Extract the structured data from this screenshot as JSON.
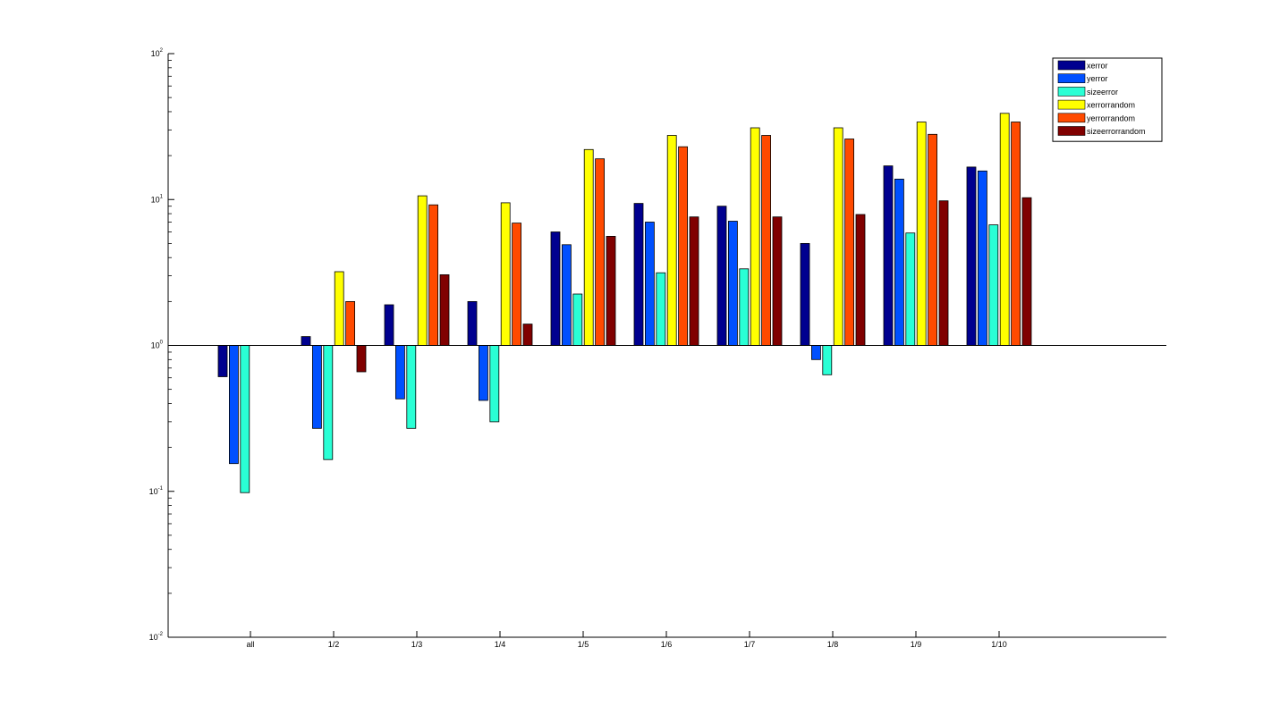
{
  "chart_data": {
    "type": "bar",
    "title": "",
    "xlabel": "",
    "ylabel": "",
    "y_scale": "log",
    "baseline": 1,
    "ylim": [
      0.01,
      100
    ],
    "yticks": [
      {
        "value": 0.01,
        "base": "10",
        "exp": "-2"
      },
      {
        "value": 0.1,
        "base": "10",
        "exp": "-1"
      },
      {
        "value": 1,
        "base": "10",
        "exp": "0"
      },
      {
        "value": 10,
        "base": "10",
        "exp": "1"
      },
      {
        "value": 100,
        "base": "10",
        "exp": "2"
      }
    ],
    "grid": false,
    "legend_position": "top-right",
    "categories": [
      "all",
      "1/2",
      "1/3",
      "1/4",
      "1/5",
      "1/6",
      "1/7",
      "1/8",
      "1/9",
      "1/10"
    ],
    "series": [
      {
        "name": "xerror",
        "color": "#00008f",
        "values": [
          0.61,
          1.15,
          1.9,
          2.0,
          6.0,
          9.4,
          9.0,
          5.0,
          17.0,
          16.7
        ]
      },
      {
        "name": "yerror",
        "color": "#0050ff",
        "values": [
          0.155,
          0.27,
          0.43,
          0.42,
          4.9,
          7.0,
          7.1,
          0.8,
          13.8,
          15.7
        ]
      },
      {
        "name": "sizeerror",
        "color": "#2affd5",
        "values": [
          0.098,
          0.165,
          0.27,
          0.3,
          2.25,
          3.15,
          3.35,
          0.63,
          5.9,
          6.7
        ]
      },
      {
        "name": "xerrorrandom",
        "color": "#ffff00",
        "values": [
          null,
          3.2,
          10.6,
          9.5,
          22.0,
          27.5,
          31.0,
          31.0,
          34.0,
          39.0
        ]
      },
      {
        "name": "yerrorrandom",
        "color": "#ff4a00",
        "values": [
          null,
          2.0,
          9.2,
          6.9,
          19.0,
          23.0,
          27.5,
          26.0,
          28.0,
          34.0
        ]
      },
      {
        "name": "sizeerrorrandom",
        "color": "#800000",
        "values": [
          null,
          0.66,
          3.05,
          1.4,
          5.6,
          7.6,
          7.6,
          7.9,
          9.8,
          10.3
        ]
      }
    ]
  }
}
